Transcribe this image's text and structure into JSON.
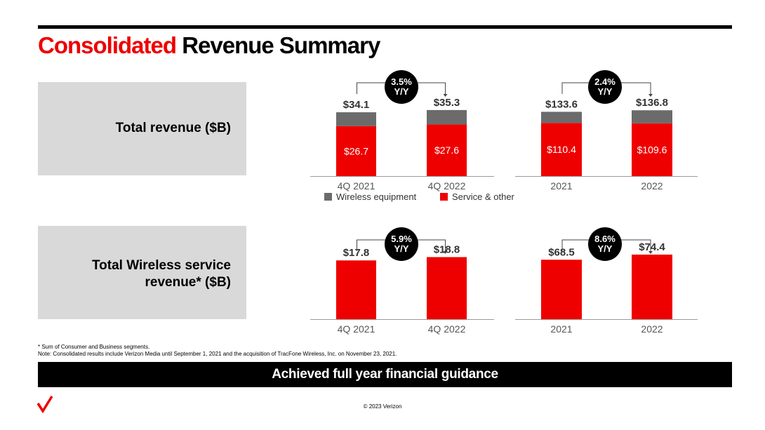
{
  "title": {
    "part1": "Consolidated",
    "part2": "Revenue Summary"
  },
  "rows": [
    {
      "label_line1": "Total revenue ($B)",
      "label_line2": ""
    },
    {
      "label_line1": "Total Wireless service",
      "label_line2": "revenue* ($B)"
    }
  ],
  "legend": {
    "wireless_equipment": "Wireless equipment",
    "service_other": "Service & other"
  },
  "colors": {
    "service": "#ee0000",
    "equipment": "#6b6b6b",
    "badge": "#000000",
    "brand": "#ee0000"
  },
  "chart_data": [
    {
      "type": "bar",
      "title": "Total revenue ($B) — quarterly",
      "categories": [
        "4Q 2021",
        "4Q 2022"
      ],
      "series": [
        {
          "name": "Service & other",
          "values": [
            26.7,
            27.6
          ],
          "labels": [
            "$26.7",
            "$27.6"
          ]
        },
        {
          "name": "Wireless equipment",
          "values": [
            7.4,
            7.7
          ]
        }
      ],
      "totals": [
        34.1,
        35.3
      ],
      "total_labels": [
        "$34.1",
        "$35.3"
      ],
      "growth": {
        "value": "3.5%",
        "unit": "Y/Y"
      },
      "ylim": [
        0,
        45
      ]
    },
    {
      "type": "bar",
      "title": "Total revenue ($B) — annual",
      "categories": [
        "2021",
        "2022"
      ],
      "series": [
        {
          "name": "Service & other",
          "values": [
            110.4,
            109.6
          ],
          "labels": [
            "$110.4",
            "$109.6"
          ]
        },
        {
          "name": "Wireless equipment",
          "values": [
            23.2,
            27.2
          ]
        }
      ],
      "totals": [
        133.6,
        136.8
      ],
      "total_labels": [
        "$133.6",
        "$136.8"
      ],
      "growth": {
        "value": "2.4%",
        "unit": "Y/Y"
      },
      "ylim": [
        0,
        175
      ]
    },
    {
      "type": "bar",
      "title": "Total Wireless service revenue* ($B) — quarterly",
      "categories": [
        "4Q 2021",
        "4Q 2022"
      ],
      "series": [
        {
          "name": "Wireless service",
          "values": [
            17.8,
            18.8
          ]
        }
      ],
      "totals": [
        17.8,
        18.8
      ],
      "total_labels": [
        "$17.8",
        "$18.8"
      ],
      "growth": {
        "value": "5.9%",
        "unit": "Y/Y"
      },
      "ylim": [
        0,
        25.5
      ]
    },
    {
      "type": "bar",
      "title": "Total Wireless service revenue* ($B) — annual",
      "categories": [
        "2021",
        "2022"
      ],
      "series": [
        {
          "name": "Wireless service",
          "values": [
            68.5,
            74.4
          ]
        }
      ],
      "totals": [
        68.5,
        74.4
      ],
      "total_labels": [
        "$68.5",
        "$74.4"
      ],
      "growth": {
        "value": "8.6%",
        "unit": "Y/Y"
      },
      "ylim": [
        0,
        97
      ]
    }
  ],
  "footnotes": {
    "line1": "* Sum of Consumer and Business segments.",
    "line2": "Note: Consolidated results include Verizon Media until September 1, 2021 and the acquisition of TracFone Wireless, Inc. on November 23, 2021."
  },
  "banner": "Achieved full year financial guidance",
  "copyright": "© 2023 Verizon"
}
